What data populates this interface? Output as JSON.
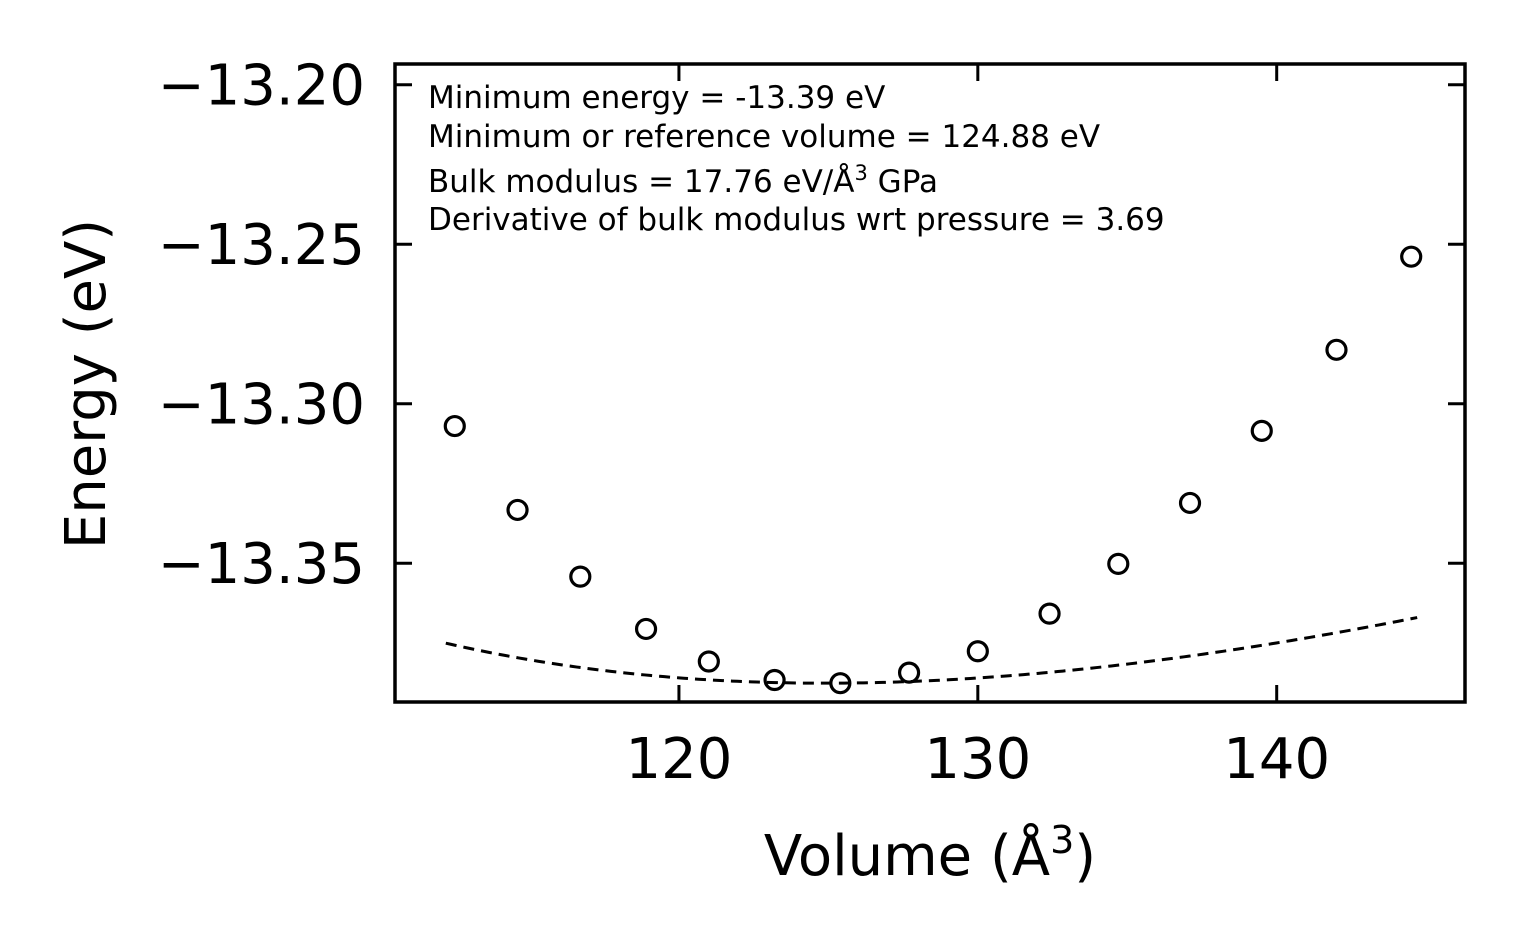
{
  "chart_data": {
    "type": "scatter",
    "title": "",
    "xlabel": "Volume (Å",
    "xlabel_sup": "3",
    "xlabel_close": ")",
    "ylabel": "Energy (eV)",
    "xlim": [
      110.5,
      146.3
    ],
    "ylim": [
      -13.3935,
      -13.1935
    ],
    "xticks": [
      120,
      130,
      140
    ],
    "xtick_labels": [
      "120",
      "130",
      "140"
    ],
    "yticks": [
      -13.2,
      -13.25,
      -13.3,
      -13.35
    ],
    "ytick_labels": [
      "−13.20",
      "−13.25",
      "−13.30",
      "−13.35"
    ],
    "series": [
      {
        "name": "data",
        "marker": "open-circle",
        "x": [
          112.5,
          114.6,
          116.7,
          118.9,
          121.0,
          123.2,
          125.4,
          127.7,
          130.0,
          132.4,
          134.7,
          137.1,
          139.5,
          142.0,
          144.5
        ],
        "y": [
          -13.307,
          -13.3333,
          -13.3542,
          -13.3706,
          -13.3808,
          -13.3866,
          -13.3876,
          -13.3843,
          -13.3776,
          -13.3658,
          -13.3502,
          -13.3311,
          -13.3085,
          -13.2831,
          -13.2539
        ]
      },
      {
        "name": "fit",
        "style": "dashed",
        "model": "birch-murnaghan",
        "x_range": [
          112.2,
          144.7
        ]
      }
    ],
    "annotations": [
      "Minimum energy = -13.39 eV",
      "Minimum or reference volume = 124.88 eV",
      "Bulk modulus = 17.76 eV/Å",
      "Derivative of bulk modulus wrt pressure = 3.69"
    ],
    "annotation_bulk_sup": "3",
    "annotation_bulk_tail": " GPa",
    "grid": false,
    "legend": "none"
  }
}
